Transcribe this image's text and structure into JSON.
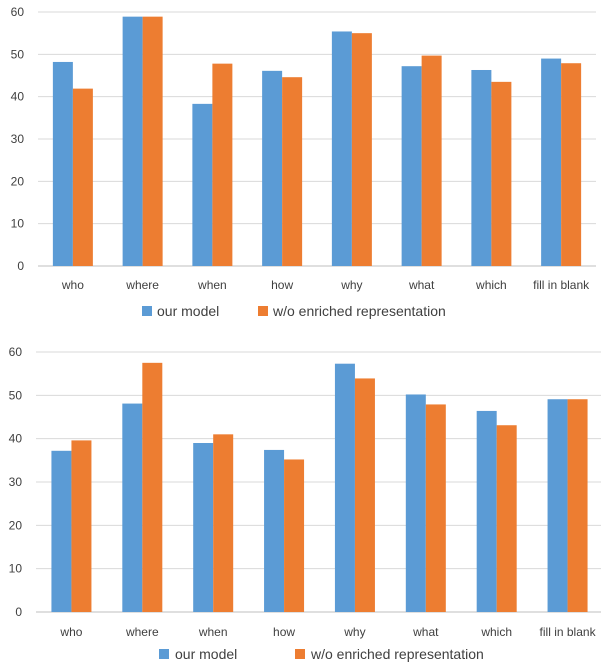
{
  "colors": {
    "series1": "#5b9bd5",
    "series2": "#ed7d31"
  },
  "chart_data": [
    {
      "type": "bar",
      "categories": [
        "who",
        "where",
        "when",
        "how",
        "why",
        "what",
        "which",
        "fill in blank"
      ],
      "series": [
        {
          "name": "our model",
          "values": [
            48.2,
            58.9,
            38.3,
            46.1,
            55.4,
            47.2,
            46.3,
            49.0
          ]
        },
        {
          "name": "w/o enriched representation",
          "values": [
            41.9,
            58.9,
            47.8,
            44.6,
            55.0,
            49.7,
            43.5,
            47.9
          ]
        }
      ],
      "yticks": [
        0,
        10,
        20,
        30,
        40,
        50,
        60
      ],
      "ylim": [
        0,
        60
      ],
      "grid": true,
      "legend": "bottom"
    },
    {
      "type": "bar",
      "categories": [
        "who",
        "where",
        "when",
        "how",
        "why",
        "what",
        "which",
        "fill in blank"
      ],
      "series": [
        {
          "name": "our model",
          "values": [
            37.2,
            48.1,
            39.0,
            37.4,
            57.3,
            50.2,
            46.4,
            49.1
          ]
        },
        {
          "name": "w/o enriched representation",
          "values": [
            39.6,
            57.5,
            41.0,
            35.2,
            53.9,
            47.9,
            43.1,
            49.1
          ]
        }
      ],
      "yticks": [
        0,
        10,
        20,
        30,
        40,
        50,
        60
      ],
      "ylim": [
        0,
        60
      ],
      "grid": true,
      "legend": "bottom"
    }
  ]
}
